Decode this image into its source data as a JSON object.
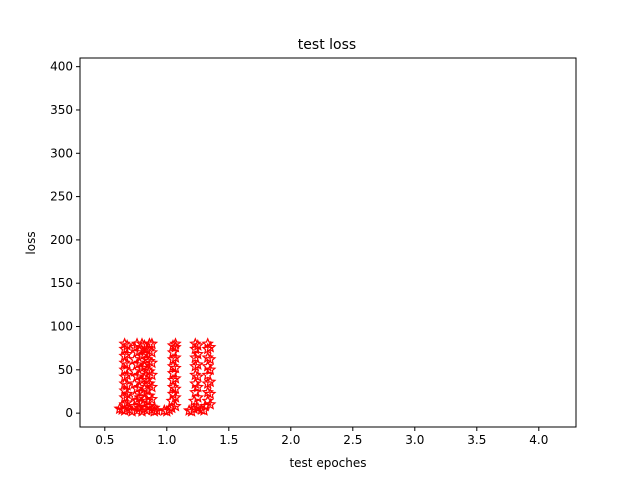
{
  "chart_data": {
    "type": "scatter",
    "title": "test loss",
    "xlabel": "test epoches",
    "ylabel": "loss",
    "xlim": [
      0.3,
      4.3
    ],
    "ylim": [
      -16,
      410
    ],
    "xticks": [
      0.5,
      1.0,
      1.5,
      2.0,
      2.5,
      3.0,
      3.5,
      4.0
    ],
    "xtick_labels": [
      "0.5",
      "1.0",
      "1.5",
      "2.0",
      "2.5",
      "3.0",
      "3.5",
      "4.0"
    ],
    "yticks": [
      0,
      50,
      100,
      150,
      200,
      250,
      300,
      350,
      400
    ],
    "ytick_labels": [
      "0",
      "50",
      "100",
      "150",
      "200",
      "250",
      "300",
      "350",
      "400"
    ],
    "grid": false,
    "legend": "none",
    "marker": "star-outline",
    "colors": {
      "points": "#ff0000",
      "axes": "#000000",
      "background": "#ffffff"
    },
    "series": [
      {
        "points": [
          [
            0.62,
            5
          ],
          [
            0.64,
            4
          ],
          [
            0.66,
            3
          ],
          [
            0.68,
            6
          ],
          [
            0.7,
            4
          ],
          [
            0.72,
            2
          ],
          [
            0.66,
            10
          ],
          [
            0.66,
            18
          ],
          [
            0.66,
            26
          ],
          [
            0.66,
            34
          ],
          [
            0.66,
            42
          ],
          [
            0.66,
            50
          ],
          [
            0.66,
            58
          ],
          [
            0.66,
            66
          ],
          [
            0.66,
            74
          ],
          [
            0.66,
            80
          ],
          [
            0.68,
            12
          ],
          [
            0.68,
            22
          ],
          [
            0.68,
            32
          ],
          [
            0.68,
            44
          ],
          [
            0.68,
            56
          ],
          [
            0.68,
            68
          ],
          [
            0.68,
            78
          ],
          [
            0.74,
            8
          ],
          [
            0.74,
            20
          ],
          [
            0.74,
            34
          ],
          [
            0.74,
            48
          ],
          [
            0.74,
            62
          ],
          [
            0.74,
            76
          ],
          [
            0.76,
            3
          ],
          [
            0.76,
            14
          ],
          [
            0.76,
            28
          ],
          [
            0.76,
            42
          ],
          [
            0.76,
            56
          ],
          [
            0.76,
            70
          ],
          [
            0.76,
            80
          ],
          [
            0.78,
            6
          ],
          [
            0.78,
            18
          ],
          [
            0.78,
            30
          ],
          [
            0.78,
            44
          ],
          [
            0.78,
            58
          ],
          [
            0.78,
            72
          ],
          [
            0.8,
            2
          ],
          [
            0.8,
            12
          ],
          [
            0.8,
            24
          ],
          [
            0.8,
            38
          ],
          [
            0.8,
            52
          ],
          [
            0.8,
            66
          ],
          [
            0.8,
            80
          ],
          [
            0.82,
            5
          ],
          [
            0.82,
            16
          ],
          [
            0.82,
            28
          ],
          [
            0.82,
            40
          ],
          [
            0.82,
            54
          ],
          [
            0.82,
            68
          ],
          [
            0.82,
            78
          ],
          [
            0.84,
            3
          ],
          [
            0.84,
            14
          ],
          [
            0.84,
            26
          ],
          [
            0.84,
            38
          ],
          [
            0.84,
            50
          ],
          [
            0.84,
            62
          ],
          [
            0.84,
            74
          ],
          [
            0.86,
            8
          ],
          [
            0.86,
            20
          ],
          [
            0.86,
            34
          ],
          [
            0.86,
            48
          ],
          [
            0.86,
            60
          ],
          [
            0.86,
            72
          ],
          [
            0.86,
            80
          ],
          [
            0.88,
            4
          ],
          [
            0.88,
            16
          ],
          [
            0.88,
            30
          ],
          [
            0.88,
            44
          ],
          [
            0.88,
            58
          ],
          [
            0.88,
            70
          ],
          [
            0.88,
            80
          ],
          [
            0.9,
            2
          ],
          [
            0.9,
            6
          ],
          [
            0.92,
            3
          ]
        ]
      },
      {
        "points": [
          [
            0.98,
            3
          ],
          [
            1.0,
            2
          ],
          [
            1.02,
            4
          ],
          [
            1.04,
            6
          ],
          [
            1.04,
            14
          ],
          [
            1.05,
            22
          ],
          [
            1.05,
            30
          ],
          [
            1.05,
            38
          ],
          [
            1.05,
            46
          ],
          [
            1.05,
            54
          ],
          [
            1.05,
            62
          ],
          [
            1.05,
            70
          ],
          [
            1.05,
            78
          ],
          [
            1.07,
            8
          ],
          [
            1.07,
            18
          ],
          [
            1.07,
            28
          ],
          [
            1.07,
            40
          ],
          [
            1.07,
            52
          ],
          [
            1.07,
            64
          ],
          [
            1.07,
            76
          ],
          [
            1.07,
            80
          ]
        ]
      },
      {
        "points": [
          [
            1.18,
            3
          ],
          [
            1.2,
            2
          ],
          [
            1.22,
            5
          ],
          [
            1.22,
            14
          ],
          [
            1.23,
            24
          ],
          [
            1.23,
            34
          ],
          [
            1.23,
            44
          ],
          [
            1.23,
            54
          ],
          [
            1.23,
            64
          ],
          [
            1.23,
            74
          ],
          [
            1.23,
            80
          ],
          [
            1.25,
            6
          ],
          [
            1.25,
            18
          ],
          [
            1.25,
            30
          ],
          [
            1.25,
            42
          ],
          [
            1.25,
            56
          ],
          [
            1.25,
            68
          ],
          [
            1.25,
            78
          ],
          [
            1.28,
            4
          ],
          [
            1.3,
            3
          ],
          [
            1.31,
            8
          ],
          [
            1.33,
            14
          ],
          [
            1.33,
            24
          ],
          [
            1.33,
            34
          ],
          [
            1.33,
            44
          ],
          [
            1.33,
            54
          ],
          [
            1.33,
            64
          ],
          [
            1.33,
            74
          ],
          [
            1.33,
            80
          ],
          [
            1.35,
            10
          ],
          [
            1.35,
            22
          ],
          [
            1.35,
            36
          ],
          [
            1.35,
            50
          ],
          [
            1.35,
            62
          ],
          [
            1.35,
            76
          ]
        ]
      }
    ]
  }
}
